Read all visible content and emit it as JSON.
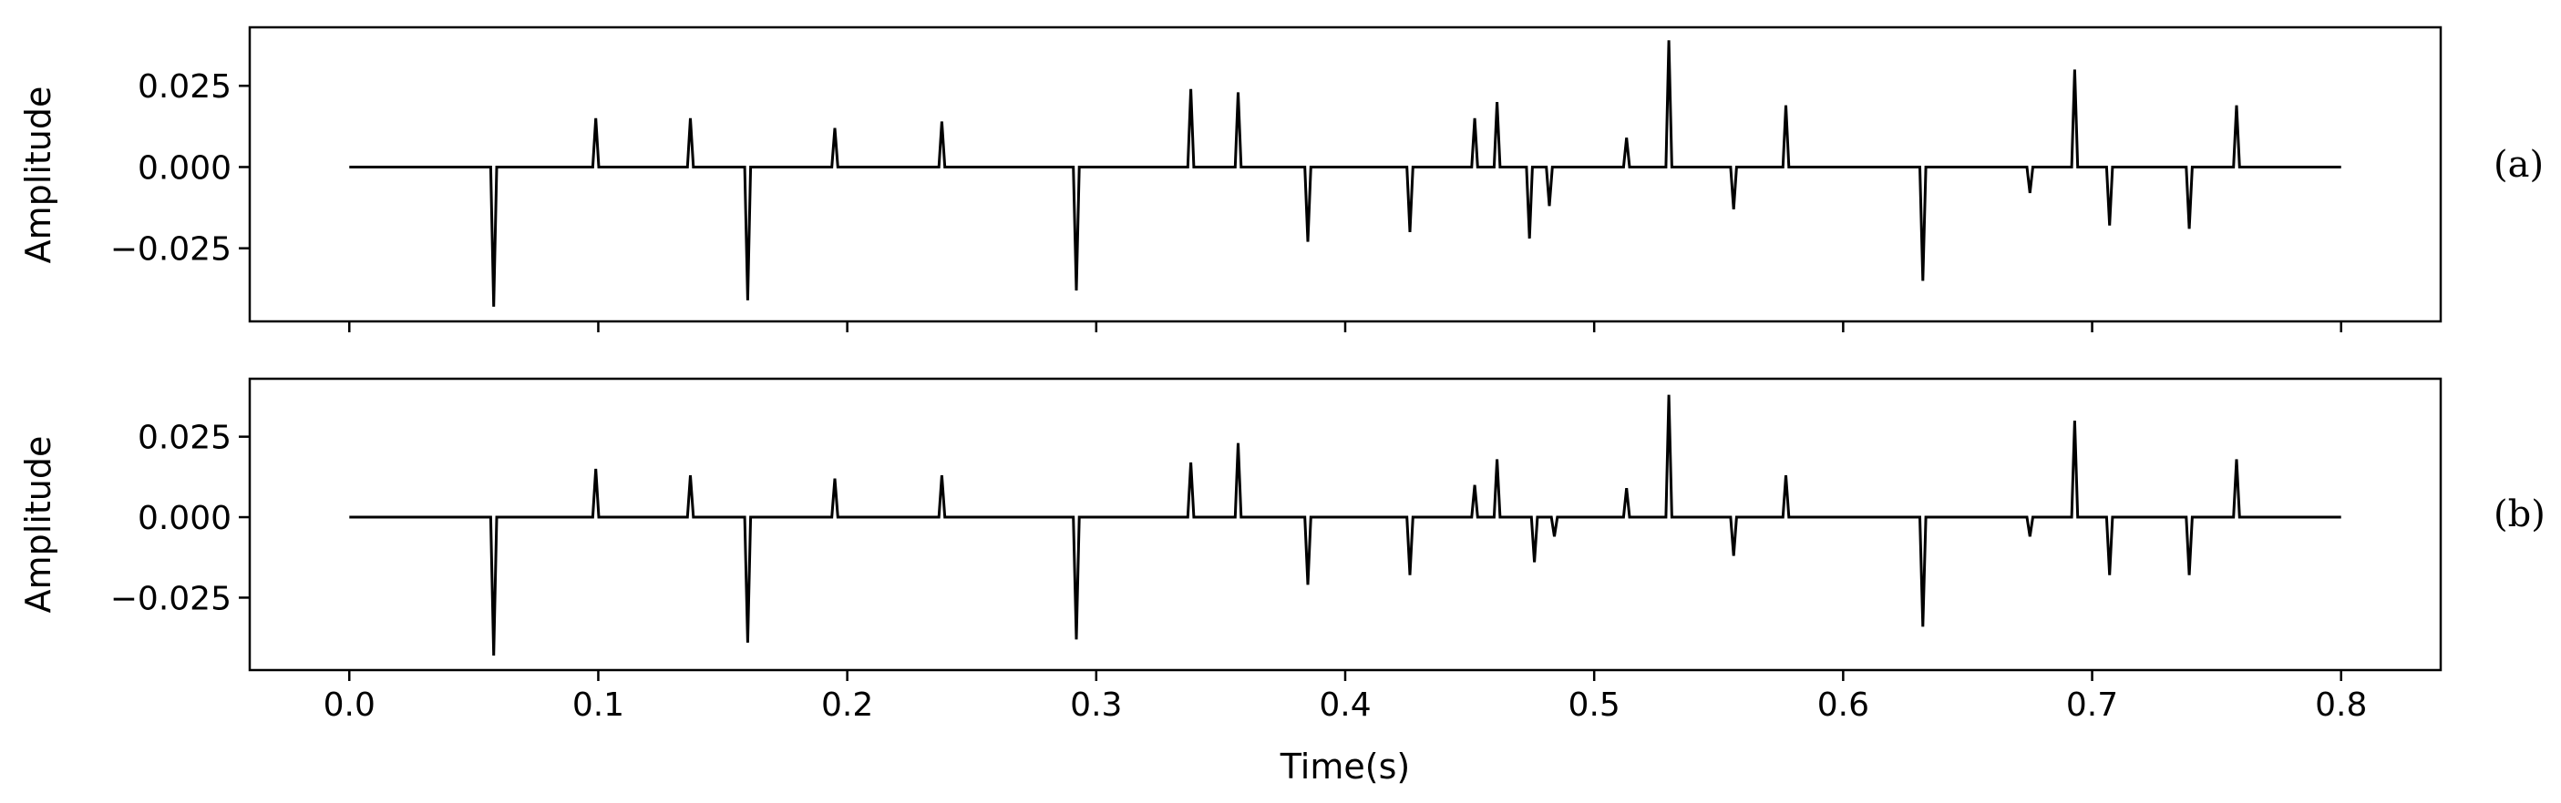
{
  "chart_data": [
    {
      "type": "line",
      "panel_label": "(a)",
      "ylabel": "Amplitude",
      "xlabel": "",
      "xlim": [
        -0.04,
        0.84
      ],
      "ylim": [
        -0.0475,
        0.043
      ],
      "x_ticks": [
        0.0,
        0.1,
        0.2,
        0.3,
        0.4,
        0.5,
        0.6,
        0.7,
        0.8
      ],
      "x_tick_labels": [],
      "y_ticks": [
        -0.025,
        0.0,
        0.025
      ],
      "y_tick_labels": [
        "−0.025",
        "0.000",
        "0.025"
      ],
      "grid": false,
      "line_color": "#000000",
      "series": [
        {
          "x_range": [
            0.0,
            0.8
          ],
          "spikes": [
            {
              "t": 0.058,
              "a": -0.043
            },
            {
              "t": 0.099,
              "a": 0.015
            },
            {
              "t": 0.137,
              "a": 0.015
            },
            {
              "t": 0.16,
              "a": -0.041
            },
            {
              "t": 0.195,
              "a": 0.012
            },
            {
              "t": 0.238,
              "a": 0.014
            },
            {
              "t": 0.292,
              "a": -0.038
            },
            {
              "t": 0.338,
              "a": 0.024
            },
            {
              "t": 0.357,
              "a": 0.023
            },
            {
              "t": 0.385,
              "a": -0.023
            },
            {
              "t": 0.426,
              "a": -0.02
            },
            {
              "t": 0.452,
              "a": 0.015
            },
            {
              "t": 0.461,
              "a": 0.02
            },
            {
              "t": 0.474,
              "a": -0.022
            },
            {
              "t": 0.482,
              "a": -0.012
            },
            {
              "t": 0.513,
              "a": 0.009
            },
            {
              "t": 0.53,
              "a": 0.039
            },
            {
              "t": 0.556,
              "a": -0.013
            },
            {
              "t": 0.577,
              "a": 0.019
            },
            {
              "t": 0.632,
              "a": -0.035
            },
            {
              "t": 0.675,
              "a": -0.008
            },
            {
              "t": 0.693,
              "a": 0.03
            },
            {
              "t": 0.707,
              "a": -0.018
            },
            {
              "t": 0.739,
              "a": -0.019
            },
            {
              "t": 0.758,
              "a": 0.019
            }
          ]
        }
      ]
    },
    {
      "type": "line",
      "panel_label": "(b)",
      "ylabel": "Amplitude",
      "xlabel": "Time(s)",
      "xlim": [
        -0.04,
        0.84
      ],
      "ylim": [
        -0.0475,
        0.043
      ],
      "x_ticks": [
        0.0,
        0.1,
        0.2,
        0.3,
        0.4,
        0.5,
        0.6,
        0.7,
        0.8
      ],
      "x_tick_labels": [
        "0.0",
        "0.1",
        "0.2",
        "0.3",
        "0.4",
        "0.5",
        "0.6",
        "0.7",
        "0.8"
      ],
      "y_ticks": [
        -0.025,
        0.0,
        0.025
      ],
      "y_tick_labels": [
        "−0.025",
        "0.000",
        "0.025"
      ],
      "grid": false,
      "line_color": "#000000",
      "series": [
        {
          "x_range": [
            0.0,
            0.8
          ],
          "spikes": [
            {
              "t": 0.058,
              "a": -0.043
            },
            {
              "t": 0.099,
              "a": 0.015
            },
            {
              "t": 0.137,
              "a": 0.013
            },
            {
              "t": 0.16,
              "a": -0.039
            },
            {
              "t": 0.195,
              "a": 0.012
            },
            {
              "t": 0.238,
              "a": 0.013
            },
            {
              "t": 0.292,
              "a": -0.038
            },
            {
              "t": 0.338,
              "a": 0.017
            },
            {
              "t": 0.357,
              "a": 0.023
            },
            {
              "t": 0.385,
              "a": -0.021
            },
            {
              "t": 0.426,
              "a": -0.018
            },
            {
              "t": 0.452,
              "a": 0.01
            },
            {
              "t": 0.461,
              "a": 0.018
            },
            {
              "t": 0.476,
              "a": -0.014
            },
            {
              "t": 0.484,
              "a": -0.006
            },
            {
              "t": 0.513,
              "a": 0.009
            },
            {
              "t": 0.53,
              "a": 0.038
            },
            {
              "t": 0.556,
              "a": -0.012
            },
            {
              "t": 0.577,
              "a": 0.013
            },
            {
              "t": 0.632,
              "a": -0.034
            },
            {
              "t": 0.675,
              "a": -0.006
            },
            {
              "t": 0.693,
              "a": 0.03
            },
            {
              "t": 0.707,
              "a": -0.018
            },
            {
              "t": 0.739,
              "a": -0.018
            },
            {
              "t": 0.758,
              "a": 0.018
            }
          ]
        }
      ]
    }
  ]
}
